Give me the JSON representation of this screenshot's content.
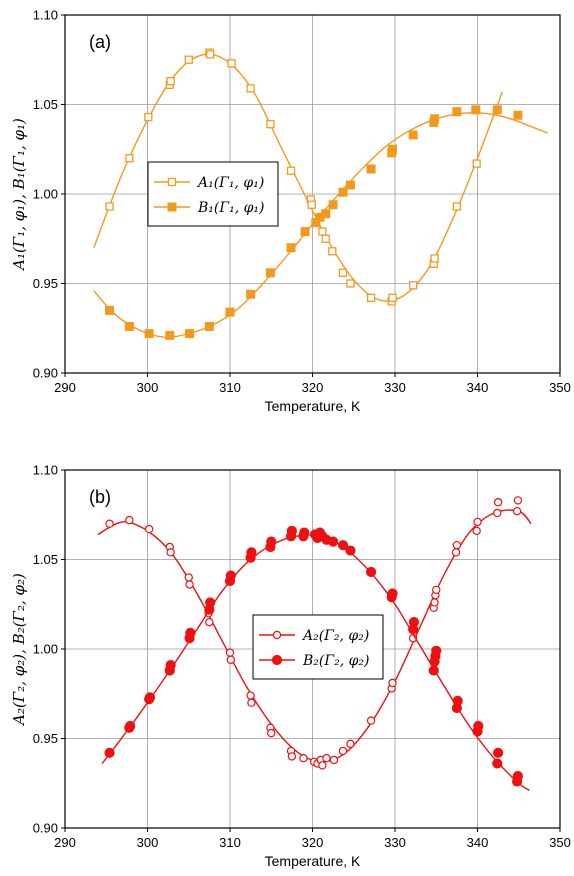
{
  "chart_data": [
    {
      "type": "scatter",
      "panel_label": "(a)",
      "xlabel": "Temperature, K",
      "ylabel": "A₁(Γ₁, φ₁), B₁(Γ₁, φ₁)",
      "xlim": [
        290,
        350
      ],
      "ylim": [
        0.9,
        1.1
      ],
      "x_ticks": [
        "290",
        "300",
        "310",
        "320",
        "330",
        "340",
        "350"
      ],
      "y_ticks": [
        "0.90",
        "0.95",
        "1.00",
        "1.05",
        "1.10"
      ],
      "grid": true,
      "legend_position": "center-left",
      "color": "#f39a1e",
      "series": [
        {
          "name": "A₁(Γ₁, φ₁)",
          "marker": "open-square",
          "points": [
            [
              295.4,
              0.993
            ],
            [
              297.8,
              1.02
            ],
            [
              300.1,
              1.043
            ],
            [
              302.7,
              1.061
            ],
            [
              302.8,
              1.063
            ],
            [
              305.0,
              1.075
            ],
            [
              307.5,
              1.079
            ],
            [
              307.6,
              1.078
            ],
            [
              310.2,
              1.073
            ],
            [
              312.5,
              1.059
            ],
            [
              314.9,
              1.039
            ],
            [
              317.4,
              1.013
            ],
            [
              319.8,
              0.997
            ],
            [
              319.9,
              0.994
            ],
            [
              321.2,
              0.979
            ],
            [
              321.6,
              0.975
            ],
            [
              322.4,
              0.968
            ],
            [
              323.7,
              0.956
            ],
            [
              324.6,
              0.95
            ],
            [
              327.1,
              0.942
            ],
            [
              329.6,
              0.94
            ],
            [
              329.7,
              0.942
            ],
            [
              332.2,
              0.949
            ],
            [
              334.7,
              0.961
            ],
            [
              334.8,
              0.964
            ],
            [
              337.5,
              0.993
            ],
            [
              339.9,
              1.017
            ],
            [
              342.4,
              1.047
            ]
          ],
          "fit_curve": [
            [
              293.5,
              0.97
            ],
            [
              297,
              1.012
            ],
            [
              301,
              1.05
            ],
            [
              304,
              1.07
            ],
            [
              307,
              1.078
            ],
            [
              310,
              1.073
            ],
            [
              313,
              1.056
            ],
            [
              316,
              1.028
            ],
            [
              319,
              1.0
            ],
            [
              322,
              0.973
            ],
            [
              325,
              0.952
            ],
            [
              328,
              0.941
            ],
            [
              331,
              0.943
            ],
            [
              334,
              0.958
            ],
            [
              337,
              0.986
            ],
            [
              340,
              1.02
            ],
            [
              343,
              1.057
            ]
          ]
        },
        {
          "name": "B₁(Γ₁, φ₁)",
          "marker": "filled-square",
          "points": [
            [
              295.4,
              0.935
            ],
            [
              297.8,
              0.926
            ],
            [
              300.2,
              0.922
            ],
            [
              302.7,
              0.921
            ],
            [
              305.1,
              0.922
            ],
            [
              307.5,
              0.926
            ],
            [
              310.0,
              0.934
            ],
            [
              312.5,
              0.944
            ],
            [
              314.9,
              0.956
            ],
            [
              317.4,
              0.97
            ],
            [
              319.1,
              0.979
            ],
            [
              320.4,
              0.984
            ],
            [
              320.9,
              0.987
            ],
            [
              321.6,
              0.989
            ],
            [
              322.5,
              0.994
            ],
            [
              323.7,
              1.001
            ],
            [
              324.6,
              1.005
            ],
            [
              327.1,
              1.014
            ],
            [
              329.6,
              1.023
            ],
            [
              329.7,
              1.025
            ],
            [
              332.2,
              1.033
            ],
            [
              334.7,
              1.04
            ],
            [
              334.8,
              1.042
            ],
            [
              337.5,
              1.046
            ],
            [
              339.8,
              1.047
            ],
            [
              342.4,
              1.047
            ],
            [
              344.9,
              1.044
            ]
          ],
          "fit_curve": [
            [
              293.5,
              0.946
            ],
            [
              296,
              0.933
            ],
            [
              299,
              0.924
            ],
            [
              302,
              0.92
            ],
            [
              305,
              0.922
            ],
            [
              308,
              0.927
            ],
            [
              311,
              0.936
            ],
            [
              314,
              0.95
            ],
            [
              317,
              0.966
            ],
            [
              320,
              0.983
            ],
            [
              323,
              0.999
            ],
            [
              326,
              1.014
            ],
            [
              329,
              1.027
            ],
            [
              332,
              1.036
            ],
            [
              335,
              1.042
            ],
            [
              338,
              1.045
            ],
            [
              341,
              1.045
            ],
            [
              344,
              1.042
            ],
            [
              348.5,
              1.034
            ]
          ]
        }
      ]
    },
    {
      "type": "scatter",
      "panel_label": "(b)",
      "xlabel": "Temperature, K",
      "ylabel": "A₂(Γ₂, φ₂), B₂(Γ₂, φ₂)",
      "xlim": [
        290,
        350
      ],
      "ylim": [
        0.9,
        1.1
      ],
      "x_ticks": [
        "290",
        "300",
        "310",
        "320",
        "330",
        "340",
        "350"
      ],
      "y_ticks": [
        "0.90",
        "0.95",
        "1.00",
        "1.05",
        "1.10"
      ],
      "grid": true,
      "legend_position": "center-right",
      "color": "#ee1111",
      "series": [
        {
          "name": "A₂(Γ₂, φ₂)",
          "marker": "open-circle",
          "points": [
            [
              295.4,
              1.07
            ],
            [
              297.8,
              1.072
            ],
            [
              300.2,
              1.067
            ],
            [
              302.7,
              1.057
            ],
            [
              302.8,
              1.054
            ],
            [
              305.0,
              1.04
            ],
            [
              305.1,
              1.036
            ],
            [
              307.4,
              1.02
            ],
            [
              307.5,
              1.015
            ],
            [
              310.0,
              0.998
            ],
            [
              310.1,
              0.994
            ],
            [
              312.5,
              0.974
            ],
            [
              312.6,
              0.97
            ],
            [
              314.9,
              0.956
            ],
            [
              315.0,
              0.953
            ],
            [
              317.4,
              0.943
            ],
            [
              317.5,
              0.94
            ],
            [
              318.9,
              0.939
            ],
            [
              320.2,
              0.937
            ],
            [
              320.6,
              0.936
            ],
            [
              321.0,
              0.938
            ],
            [
              321.2,
              0.935
            ],
            [
              321.7,
              0.939
            ],
            [
              322.6,
              0.938
            ],
            [
              323.7,
              0.943
            ],
            [
              324.6,
              0.947
            ],
            [
              327.1,
              0.96
            ],
            [
              329.6,
              0.978
            ],
            [
              329.7,
              0.981
            ],
            [
              332.2,
              1.006
            ],
            [
              334.7,
              1.023
            ],
            [
              334.8,
              1.026
            ],
            [
              334.9,
              1.03
            ],
            [
              335.0,
              1.033
            ],
            [
              337.4,
              1.054
            ],
            [
              337.5,
              1.058
            ],
            [
              339.9,
              1.066
            ],
            [
              340.0,
              1.071
            ],
            [
              342.4,
              1.076
            ],
            [
              342.5,
              1.082
            ],
            [
              344.8,
              1.077
            ],
            [
              344.9,
              1.083
            ]
          ],
          "fit_curve": [
            [
              294,
              1.064
            ],
            [
              297,
              1.071
            ],
            [
              300,
              1.066
            ],
            [
              303,
              1.053
            ],
            [
              306,
              1.031
            ],
            [
              309,
              1.005
            ],
            [
              312,
              0.979
            ],
            [
              315,
              0.958
            ],
            [
              318,
              0.943
            ],
            [
              321,
              0.937
            ],
            [
              324,
              0.942
            ],
            [
              327,
              0.958
            ],
            [
              330,
              0.982
            ],
            [
              333,
              1.012
            ],
            [
              336,
              1.042
            ],
            [
              339,
              1.065
            ],
            [
              342,
              1.076
            ],
            [
              345,
              1.077
            ],
            [
              346.5,
              1.07
            ]
          ]
        },
        {
          "name": "B₂(Γ₂, φ₂)",
          "marker": "filled-circle",
          "points": [
            [
              295.4,
              0.942
            ],
            [
              297.8,
              0.956
            ],
            [
              297.9,
              0.957
            ],
            [
              300.2,
              0.972
            ],
            [
              300.3,
              0.973
            ],
            [
              302.7,
              0.988
            ],
            [
              302.8,
              0.991
            ],
            [
              305.1,
              1.006
            ],
            [
              305.2,
              1.009
            ],
            [
              307.5,
              1.022
            ],
            [
              307.6,
              1.026
            ],
            [
              310.0,
              1.038
            ],
            [
              310.1,
              1.041
            ],
            [
              312.5,
              1.051
            ],
            [
              312.6,
              1.054
            ],
            [
              314.9,
              1.057
            ],
            [
              315.0,
              1.06
            ],
            [
              317.4,
              1.063
            ],
            [
              317.5,
              1.066
            ],
            [
              318.9,
              1.063
            ],
            [
              319.0,
              1.065
            ],
            [
              320.3,
              1.064
            ],
            [
              320.6,
              1.062
            ],
            [
              320.9,
              1.065
            ],
            [
              321.2,
              1.063
            ],
            [
              321.7,
              1.061
            ],
            [
              322.5,
              1.06
            ],
            [
              323.7,
              1.058
            ],
            [
              324.6,
              1.055
            ],
            [
              327.1,
              1.043
            ],
            [
              329.6,
              1.029
            ],
            [
              329.7,
              1.031
            ],
            [
              332.2,
              1.011
            ],
            [
              332.3,
              1.015
            ],
            [
              334.7,
              0.988
            ],
            [
              334.8,
              0.993
            ],
            [
              334.9,
              0.996
            ],
            [
              335.0,
              0.999
            ],
            [
              337.5,
              0.967
            ],
            [
              337.6,
              0.971
            ],
            [
              340.0,
              0.954
            ],
            [
              340.1,
              0.957
            ],
            [
              342.4,
              0.936
            ],
            [
              342.5,
              0.942
            ],
            [
              344.8,
              0.926
            ],
            [
              344.9,
              0.929
            ]
          ],
          "fit_curve": [
            [
              294.5,
              0.936
            ],
            [
              297,
              0.951
            ],
            [
              300,
              0.97
            ],
            [
              303,
              0.99
            ],
            [
              306,
              1.011
            ],
            [
              309,
              1.032
            ],
            [
              312,
              1.048
            ],
            [
              315,
              1.058
            ],
            [
              318,
              1.063
            ],
            [
              321,
              1.063
            ],
            [
              324,
              1.056
            ],
            [
              327,
              1.043
            ],
            [
              330,
              1.025
            ],
            [
              333,
              1.002
            ],
            [
              336,
              0.979
            ],
            [
              339,
              0.957
            ],
            [
              342,
              0.939
            ],
            [
              345,
              0.925
            ],
            [
              346.3,
              0.921
            ]
          ]
        }
      ]
    }
  ]
}
